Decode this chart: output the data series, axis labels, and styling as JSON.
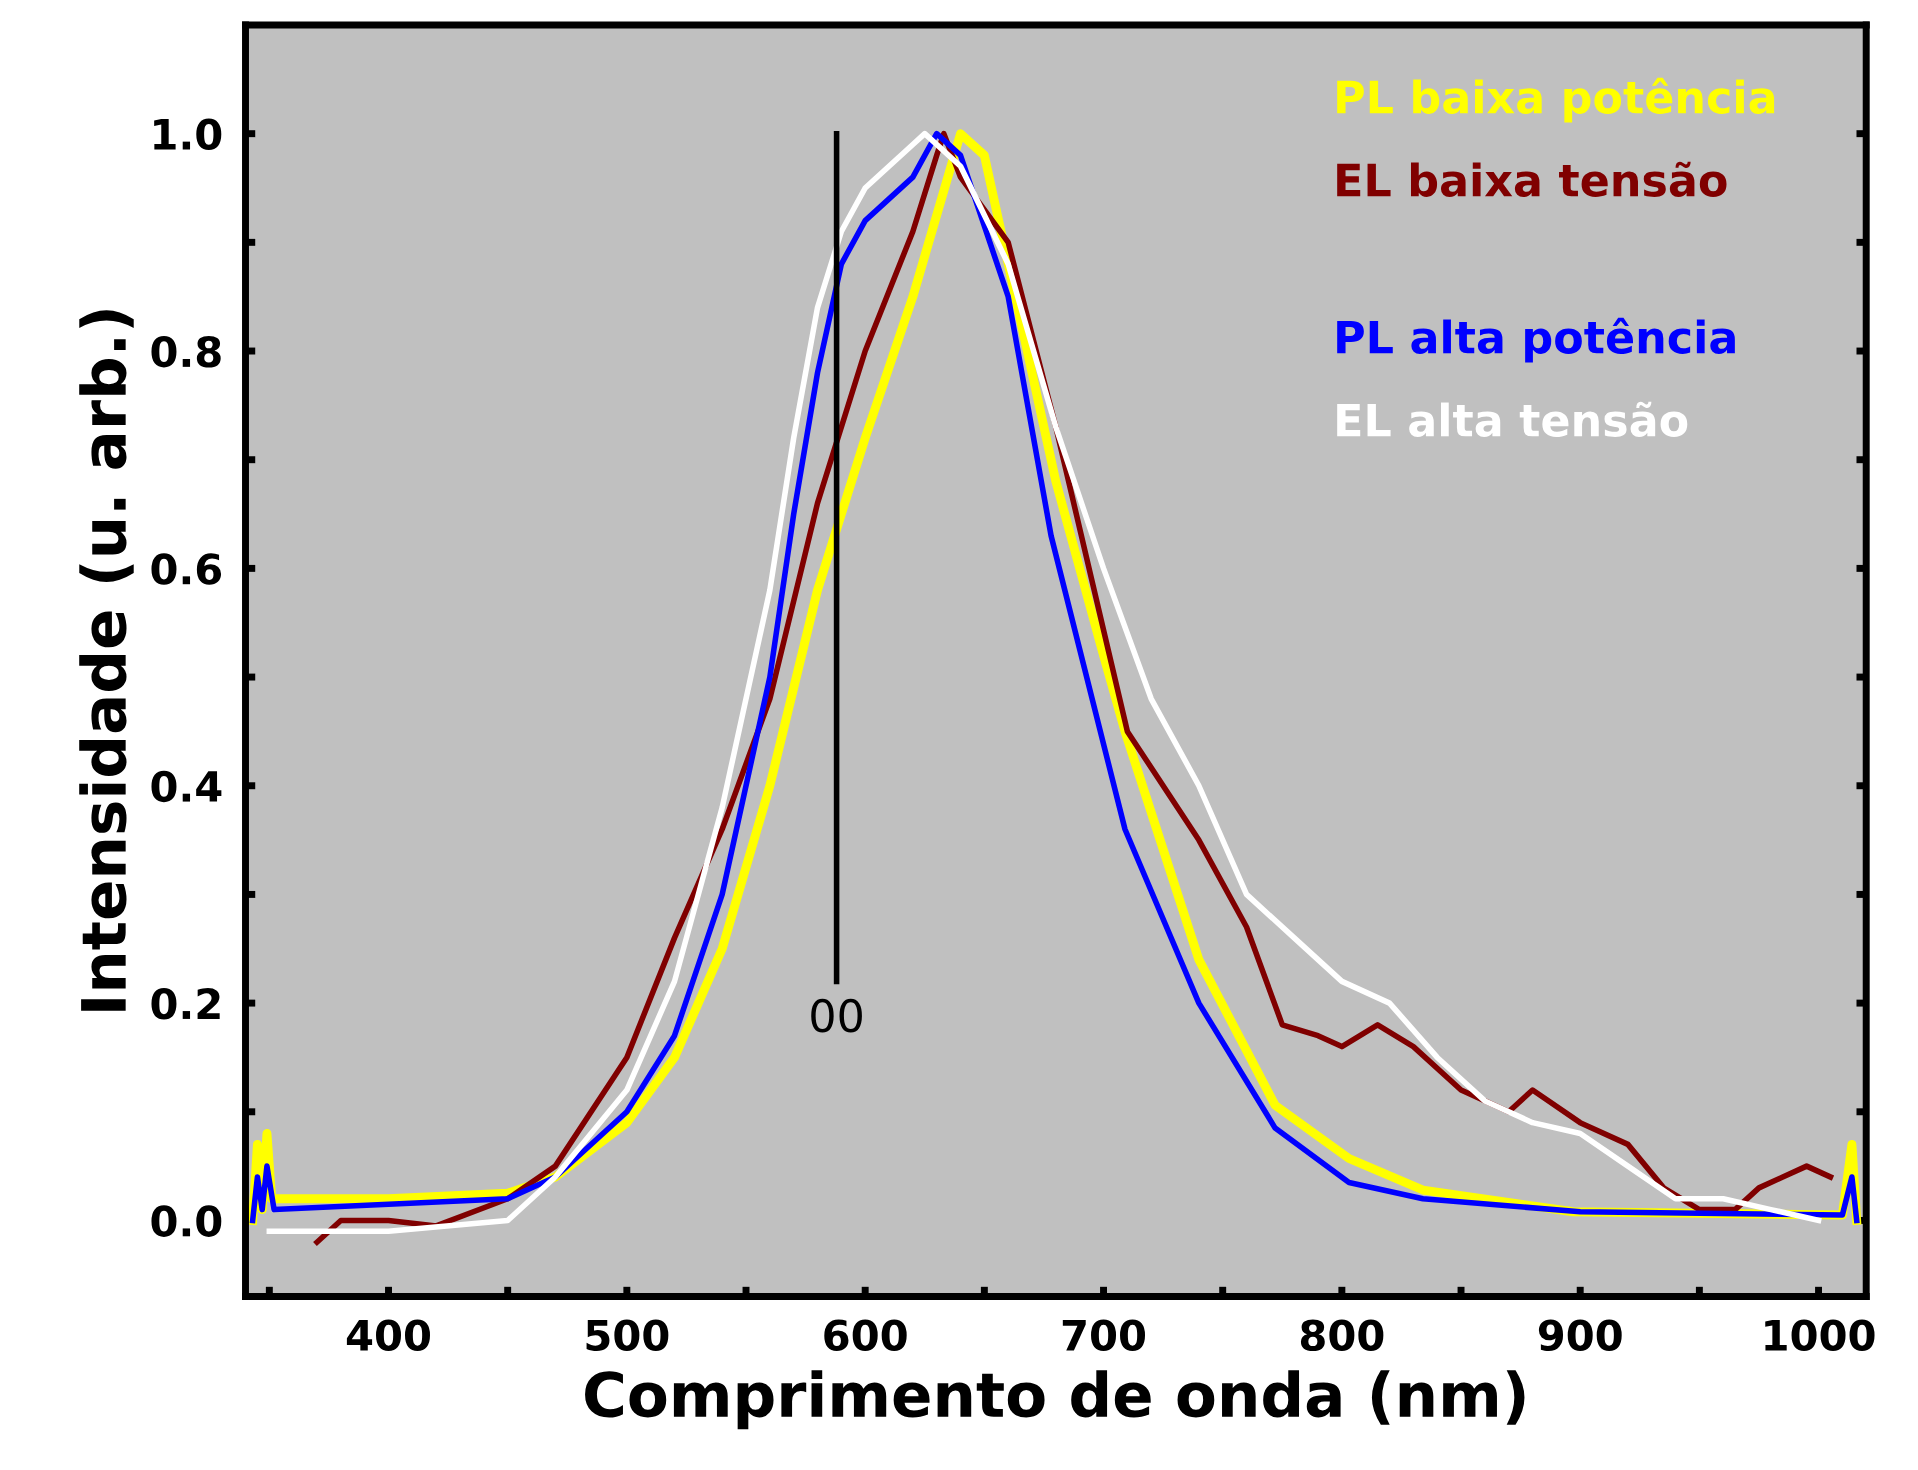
{
  "chart_data": {
    "type": "line",
    "xlabel": "Comprimento de onda (nm)",
    "ylabel": "Intensidade (u. arb.)",
    "xlim": [
      340,
      1020
    ],
    "ylim": [
      -0.07,
      1.1
    ],
    "xticks": [
      {
        "value": 350,
        "label": null
      },
      400,
      {
        "value": 450,
        "label": null
      },
      500,
      {
        "value": 550,
        "label": null
      },
      600,
      {
        "value": 650,
        "label": null
      },
      700,
      {
        "value": 750,
        "label": null
      },
      800,
      {
        "value": 850,
        "label": null
      },
      900,
      {
        "value": 950,
        "label": null
      },
      1000
    ],
    "yticks": [
      {
        "value": 0,
        "label": "0.0"
      },
      {
        "value": 0.1,
        "label": null
      },
      {
        "value": 0.2,
        "label": "0.2"
      },
      {
        "value": 0.3,
        "label": null
      },
      {
        "value": 0.4,
        "label": "0.4"
      },
      {
        "value": 0.5,
        "label": null
      },
      {
        "value": 0.6,
        "label": "0.6"
      },
      {
        "value": 0.7,
        "label": null
      },
      {
        "value": 0.8,
        "label": "0.8"
      },
      {
        "value": 0.9,
        "label": null
      },
      {
        "value": 1.0,
        "label": "1.0"
      }
    ],
    "grid": false,
    "legend": "top right",
    "marker": "none",
    "line_style": "solid",
    "annotations": [
      "00"
    ],
    "series": [
      {
        "name": "PL baixa potência",
        "color": "#ffff00",
        "x": [
          343,
          345,
          347,
          349,
          351,
          355,
          400,
          450,
          470,
          500,
          520,
          540,
          560,
          580,
          600,
          620,
          640,
          650,
          660,
          680,
          700,
          709,
          740,
          772,
          803,
          834,
          897,
          1010,
          1014,
          1016
        ],
        "values": [
          0.0,
          0.07,
          0.01,
          0.08,
          0.02,
          0.02,
          0.02,
          0.025,
          0.04,
          0.09,
          0.15,
          0.25,
          0.4,
          0.58,
          0.72,
          0.85,
          1.0,
          0.98,
          0.88,
          0.68,
          0.52,
          0.45,
          0.24,
          0.106,
          0.057,
          0.028,
          0.008,
          0.005,
          0.07,
          0.0
        ]
      },
      {
        "name": "EL baixa tensão",
        "color": "#800000",
        "x": [
          370,
          380,
          400,
          420,
          450,
          470,
          500,
          520,
          540,
          560,
          580,
          600,
          620,
          630,
          633,
          640,
          660,
          680,
          710,
          740,
          760,
          775,
          790,
          800,
          815,
          830,
          850,
          870,
          880,
          900,
          920,
          935,
          950,
          965,
          975,
          985,
          995,
          1005
        ],
        "values": [
          -0.02,
          0.0,
          0.0,
          -0.005,
          0.02,
          0.05,
          0.15,
          0.26,
          0.36,
          0.48,
          0.66,
          0.8,
          0.91,
          0.98,
          1.0,
          0.96,
          0.9,
          0.73,
          0.45,
          0.35,
          0.27,
          0.18,
          0.17,
          0.16,
          0.18,
          0.16,
          0.12,
          0.1,
          0.12,
          0.09,
          0.07,
          0.03,
          0.01,
          0.01,
          0.03,
          0.04,
          0.05,
          0.04
        ]
      },
      {
        "name": "PL alta potência",
        "color": "#0000ff",
        "x": [
          343,
          345,
          347,
          349,
          352,
          400,
          450,
          470,
          500,
          520,
          540,
          560,
          570,
          580,
          590,
          600,
          620,
          630,
          640,
          660,
          678,
          709,
          740,
          772,
          803,
          834,
          900,
          1010,
          1014,
          1016
        ],
        "values": [
          0.0,
          0.04,
          0.01,
          0.05,
          0.01,
          0.015,
          0.02,
          0.04,
          0.1,
          0.17,
          0.3,
          0.5,
          0.65,
          0.78,
          0.88,
          0.92,
          0.96,
          1.0,
          0.98,
          0.85,
          0.63,
          0.36,
          0.2,
          0.085,
          0.035,
          0.02,
          0.008,
          0.005,
          0.04,
          0.0
        ]
      },
      {
        "name": "EL alta tensão",
        "color": "#ffffff",
        "x": [
          350,
          400,
          450,
          470,
          500,
          520,
          540,
          560,
          570,
          580,
          590,
          600,
          620,
          625,
          640,
          660,
          680,
          700,
          720,
          740,
          760,
          780,
          800,
          820,
          840,
          860,
          880,
          900,
          920,
          940,
          960,
          980,
          1000
        ],
        "values": [
          -0.01,
          -0.01,
          0.0,
          0.04,
          0.12,
          0.22,
          0.38,
          0.58,
          0.72,
          0.84,
          0.91,
          0.95,
          0.99,
          1.0,
          0.97,
          0.88,
          0.73,
          0.6,
          0.48,
          0.4,
          0.3,
          0.26,
          0.22,
          0.2,
          0.15,
          0.11,
          0.09,
          0.08,
          0.05,
          0.02,
          0.02,
          0.01,
          0.0
        ]
      },
      {
        "type": "line",
        "color": "#000000",
        "x": [
          588,
          588
        ],
        "values": [
          0.22,
          1.0
        ]
      }
    ]
  }
}
